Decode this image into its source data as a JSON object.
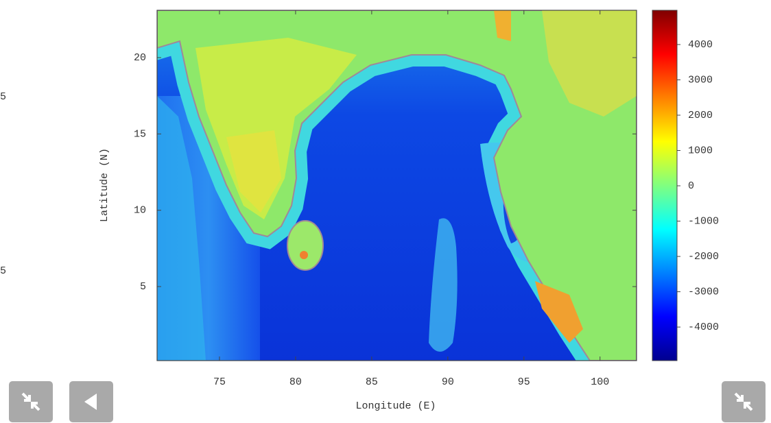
{
  "left_fragments": [
    "5",
    "5"
  ],
  "chart_data": {
    "type": "map",
    "xlabel": "Longitude (E)",
    "ylabel": "Latitude (N)",
    "xlim": [
      70.9,
      102.4
    ],
    "xticks": [
      75,
      80,
      85,
      90,
      95,
      100
    ],
    "ylim": [
      0.15,
      23.1
    ],
    "yticks": [
      5,
      10,
      15,
      20
    ],
    "colorbar": {
      "lim": [
        -4950,
        4970
      ],
      "ticks": [
        -4000,
        -3000,
        -2000,
        -1000,
        0,
        1000,
        2000,
        3000,
        4000
      ],
      "colormap": "jet"
    }
  }
}
